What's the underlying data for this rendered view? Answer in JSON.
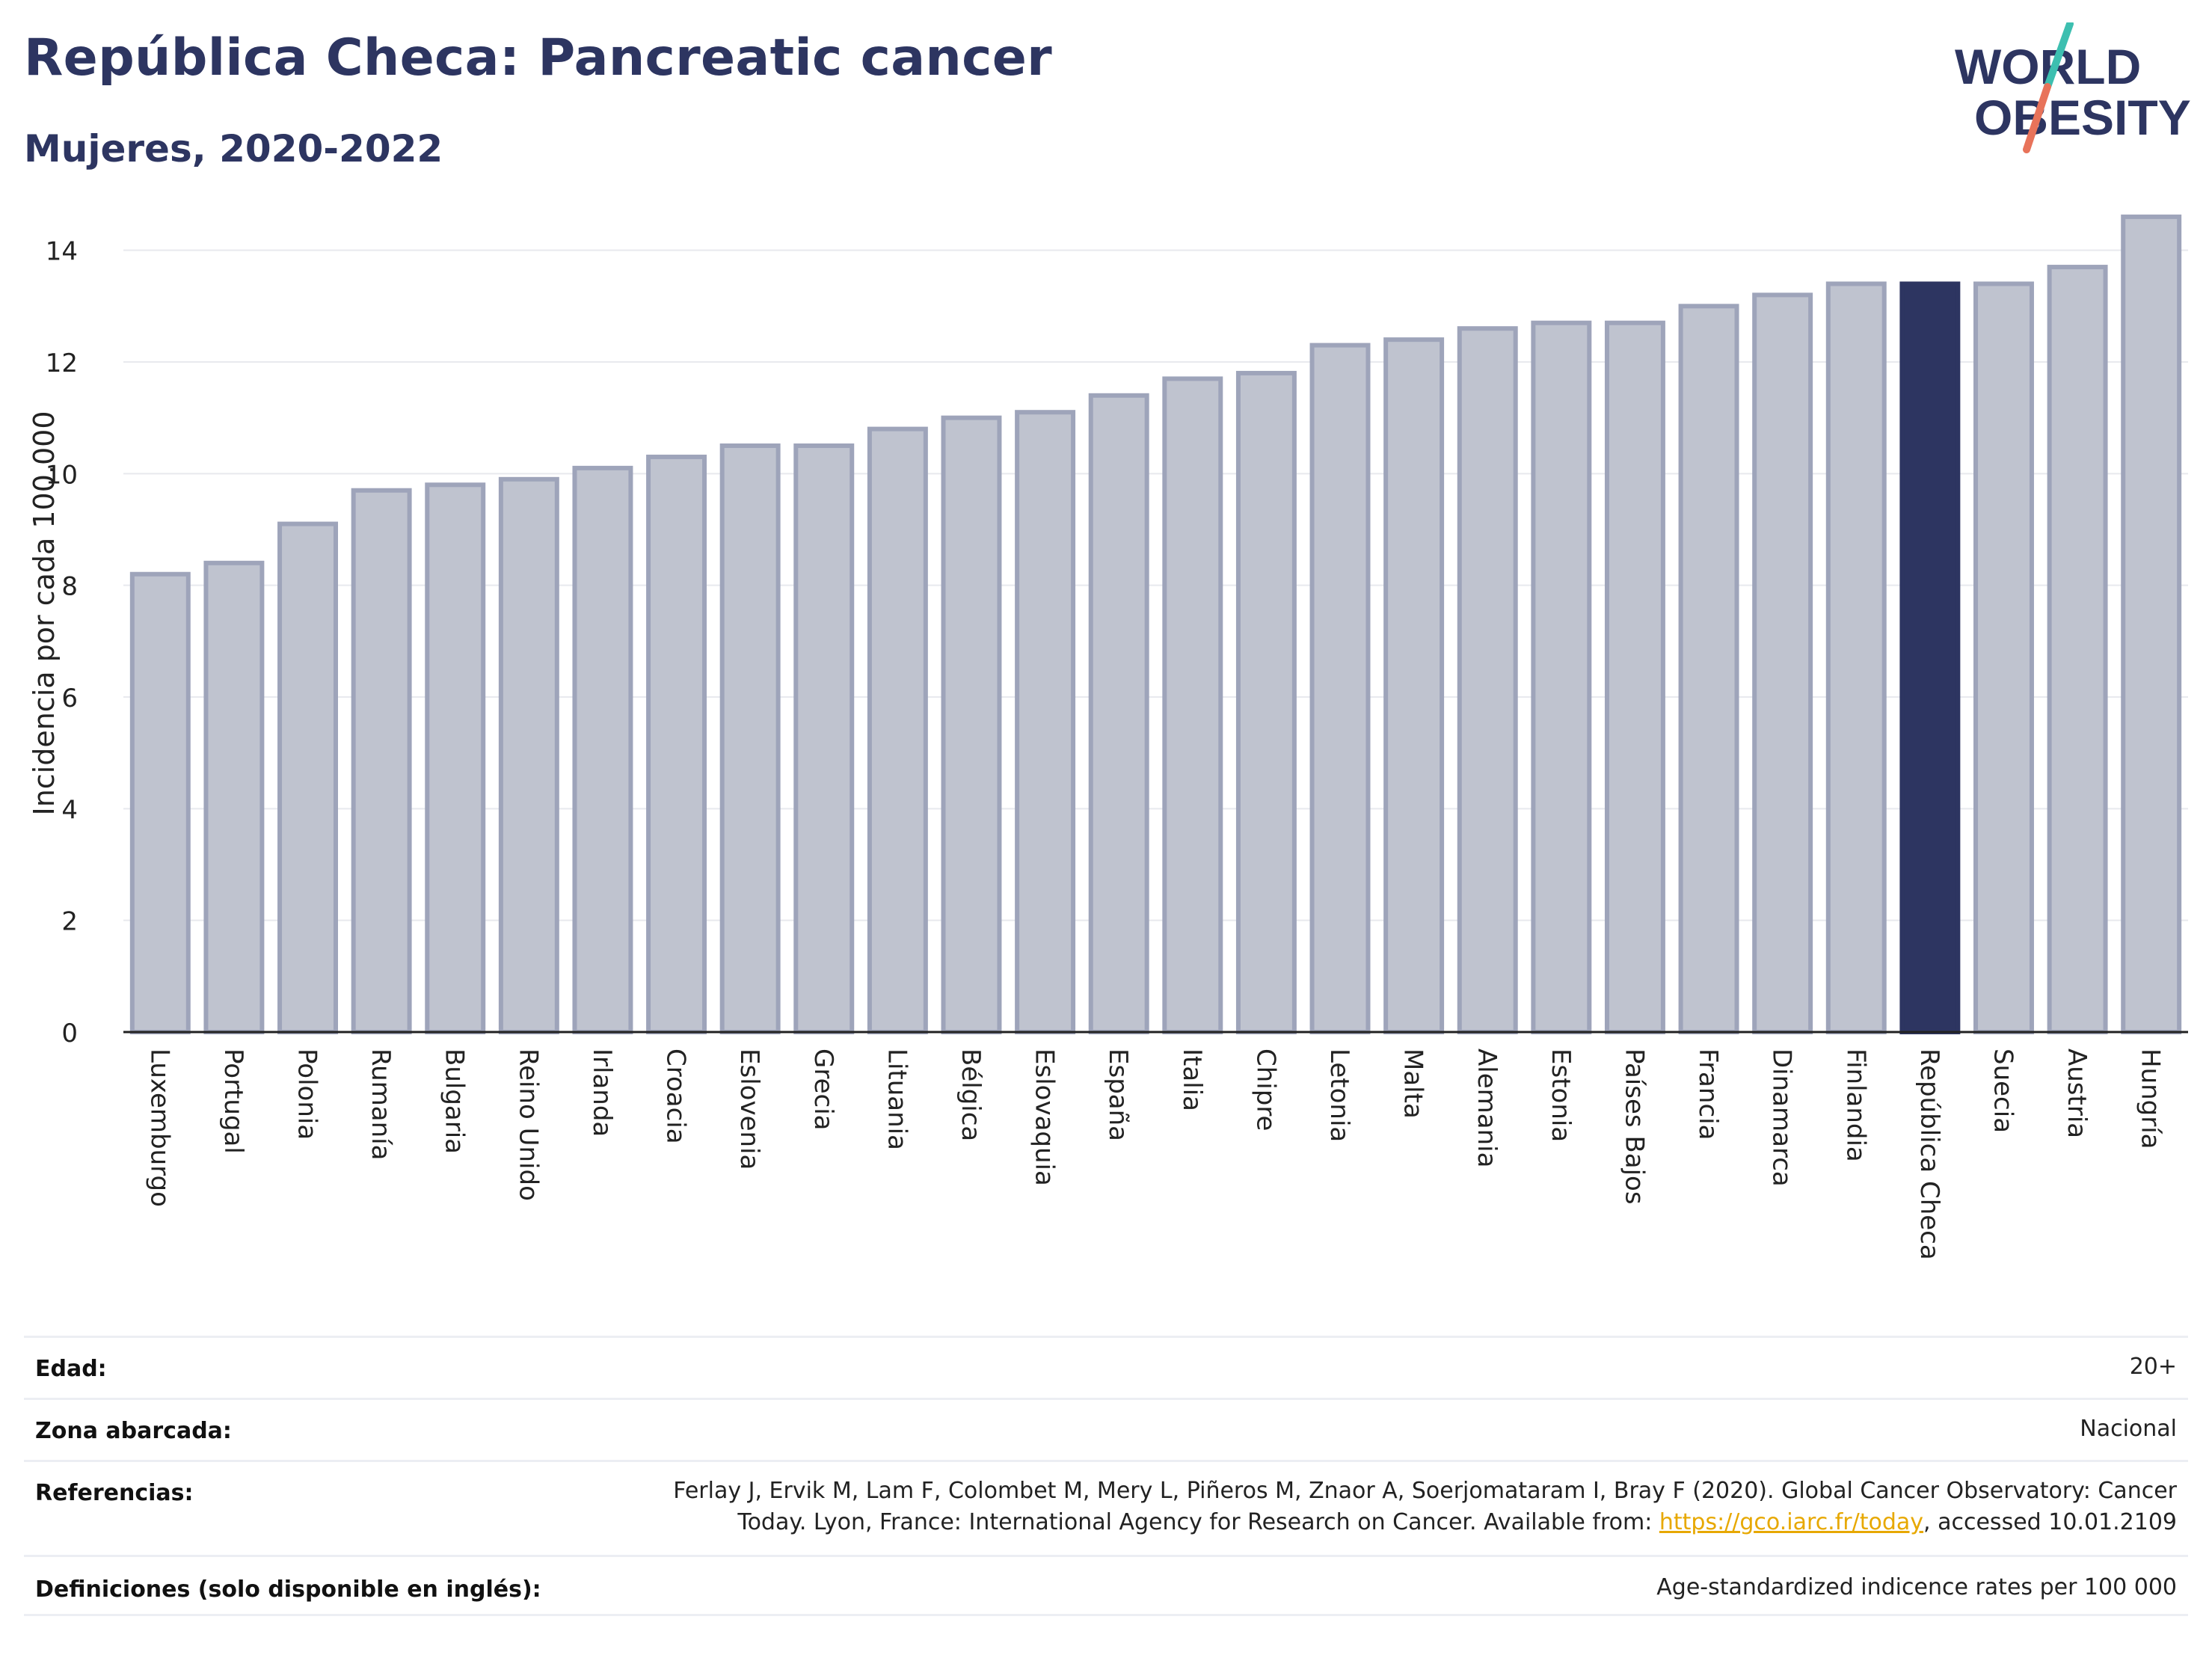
{
  "header": {
    "title": "República Checa: Pancreatic cancer",
    "subtitle": "Mujeres, 2020-2022"
  },
  "logo": {
    "line1": "WORLD",
    "line2": "OBESITY",
    "accent_teal": "#3dbfb0",
    "accent_coral": "#e8735a",
    "text_color": "#2d3561"
  },
  "colors": {
    "bar_default": "#bfc3cf",
    "bar_border": "#9ea4ba",
    "bar_highlight": "#2d3561",
    "gridline": "#e8e9ee",
    "axis": "#222222"
  },
  "chart_data": {
    "type": "bar",
    "ylabel": "Incidencia por cada 100.000",
    "ylim": [
      0,
      15
    ],
    "yticks": [
      0,
      2,
      4,
      6,
      8,
      10,
      12,
      14
    ],
    "grid": true,
    "highlight": "República Checa",
    "categories": [
      "Luxemburgo",
      "Portugal",
      "Polonia",
      "Rumanía",
      "Bulgaria",
      "Reino Unido",
      "Irlanda",
      "Croacia",
      "Eslovenia",
      "Grecia",
      "Lituania",
      "Bélgica",
      "Eslovaquia",
      "España",
      "Italia",
      "Chipre",
      "Letonia",
      "Malta",
      "Alemania",
      "Estonia",
      "Países Bajos",
      "Francia",
      "Dinamarca",
      "Finlandia",
      "República Checa",
      "Suecia",
      "Austria",
      "Hungría"
    ],
    "values": [
      8.2,
      8.4,
      9.1,
      9.7,
      9.8,
      9.9,
      10.1,
      10.3,
      10.5,
      10.5,
      10.8,
      11.0,
      11.1,
      11.4,
      11.7,
      11.8,
      12.3,
      12.4,
      12.6,
      12.7,
      12.7,
      13.0,
      13.2,
      13.4,
      13.4,
      13.4,
      13.7,
      14.6
    ]
  },
  "meta": {
    "rows": [
      {
        "key": "Edad:",
        "value": "20+"
      },
      {
        "key": "Zona abarcada:",
        "value": "Nacional"
      },
      {
        "key": "Referencias:",
        "value_line1": "Ferlay J, Ervik M, Lam F, Colombet M, Mery L, Piñeros M, Znaor A, Soerjomataram I, Bray F (2020). Global Cancer Observatory: Cancer",
        "value_line2_pre": "Today. Lyon, France: International Agency for Research on Cancer. Available from: ",
        "value_link": "https://gco.iarc.fr/today",
        "value_line2_post": ", accessed 10.01.2109"
      },
      {
        "key": "Definiciones (solo disponible en inglés):",
        "value": "Age-standardized indicence rates per 100 000"
      }
    ]
  }
}
